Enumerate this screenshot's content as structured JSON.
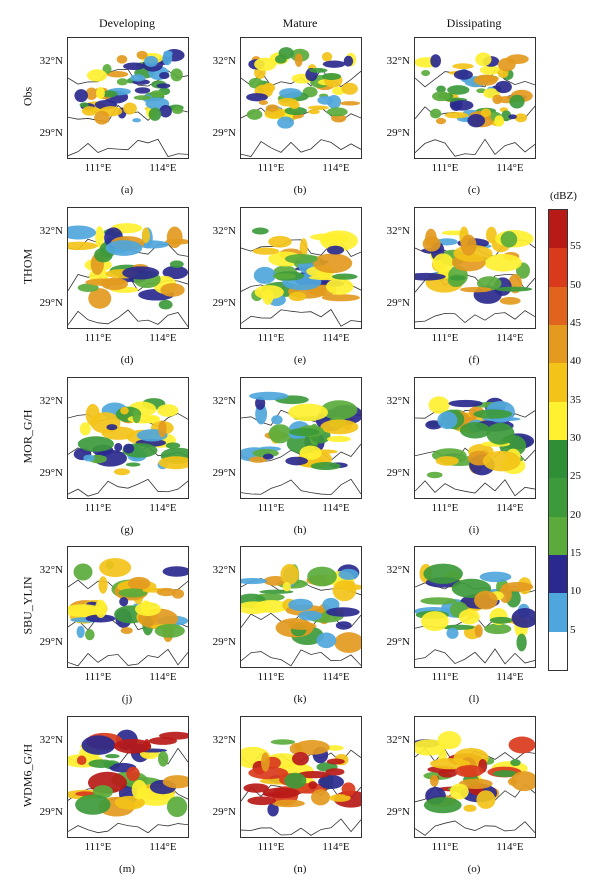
{
  "columns": [
    "Developing",
    "Mature",
    "Dissipating"
  ],
  "rows": [
    "Obs",
    "THOM",
    "MOR_G/H",
    "SBU_YLIN",
    "WDM6_G/H"
  ],
  "captions": [
    [
      "(a)",
      "(b)",
      "(c)"
    ],
    [
      "(d)",
      "(e)",
      "(f)"
    ],
    [
      "(g)",
      "(h)",
      "(i)"
    ],
    [
      "(j)",
      "(k)",
      "(l)"
    ],
    [
      "(m)",
      "(n)",
      "(o)"
    ]
  ],
  "axis": {
    "y_ticks": [
      "32°N",
      "29°N"
    ],
    "x_ticks": [
      "111°E",
      "114°E"
    ]
  },
  "colorbar": {
    "unit": "(dBZ)",
    "ticks": [
      "55",
      "50",
      "45",
      "40",
      "35",
      "30",
      "25",
      "20",
      "15",
      "10",
      "5"
    ],
    "colors": [
      "#ffffff",
      "#4fa6dc",
      "#2a2a8e",
      "#5aab3c",
      "#3d9a3b",
      "#2f8f36",
      "#fff030",
      "#f3c318",
      "#e39a1e",
      "#e0641e",
      "#d93a1c",
      "#b81a18"
    ]
  }
}
